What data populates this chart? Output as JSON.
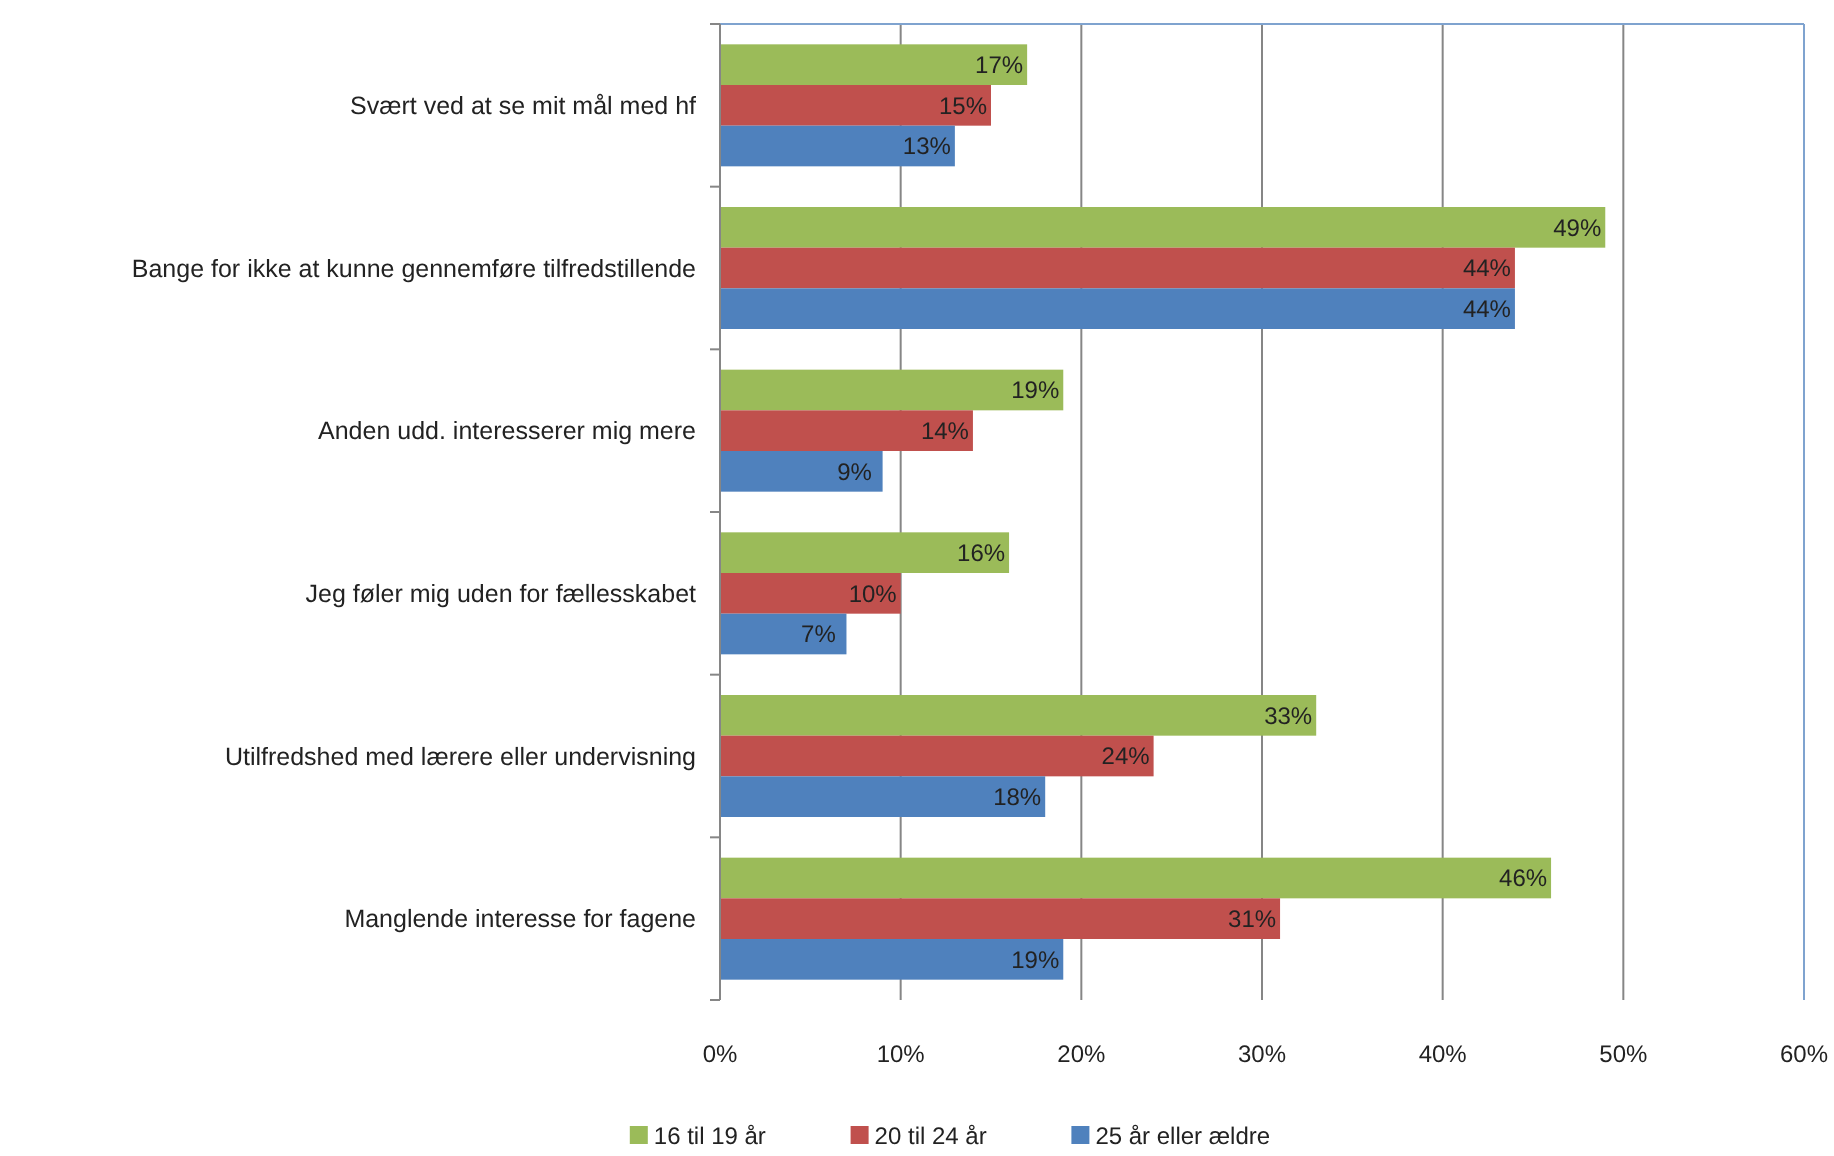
{
  "chart_data": {
    "type": "bar",
    "orientation": "horizontal",
    "categories": [
      "Svært ved at se mit mål med hf",
      "Bange for ikke at kunne gennemføre tilfredstillende",
      "Anden udd. interesserer mig mere",
      "Jeg føler mig uden for fællesskabet",
      "Utilfredshed med lærere eller undervisning",
      "Manglende interesse for fagene"
    ],
    "series": [
      {
        "name": "16 til 19 år",
        "color": "#9bbb59",
        "values": [
          17,
          49,
          19,
          16,
          33,
          46
        ],
        "value_labels": [
          "17%",
          "49%",
          "19%",
          "16%",
          "33%",
          "46%"
        ]
      },
      {
        "name": "20 til 24 år",
        "color": "#c0504d",
        "values": [
          15,
          44,
          14,
          10,
          24,
          31
        ],
        "value_labels": [
          "15%",
          "44%",
          "14%",
          "10%",
          "24%",
          "31%"
        ]
      },
      {
        "name": "25 år eller ældre",
        "color": "#4f81bd",
        "values": [
          13,
          44,
          9,
          7,
          18,
          19
        ],
        "value_labels": [
          "13%",
          "44%",
          "9%",
          "7%",
          "18%",
          "19%"
        ]
      }
    ],
    "xlim": [
      0,
      60
    ],
    "xticks": [
      {
        "value": 0,
        "label": "0%"
      },
      {
        "value": 10,
        "label": "10%"
      },
      {
        "value": 20,
        "label": "20%"
      },
      {
        "value": 30,
        "label": "30%"
      },
      {
        "value": 40,
        "label": "40%"
      },
      {
        "value": 50,
        "label": "50%"
      },
      {
        "value": 60,
        "label": "60%"
      }
    ],
    "grid": "x",
    "legend": "bottom"
  }
}
